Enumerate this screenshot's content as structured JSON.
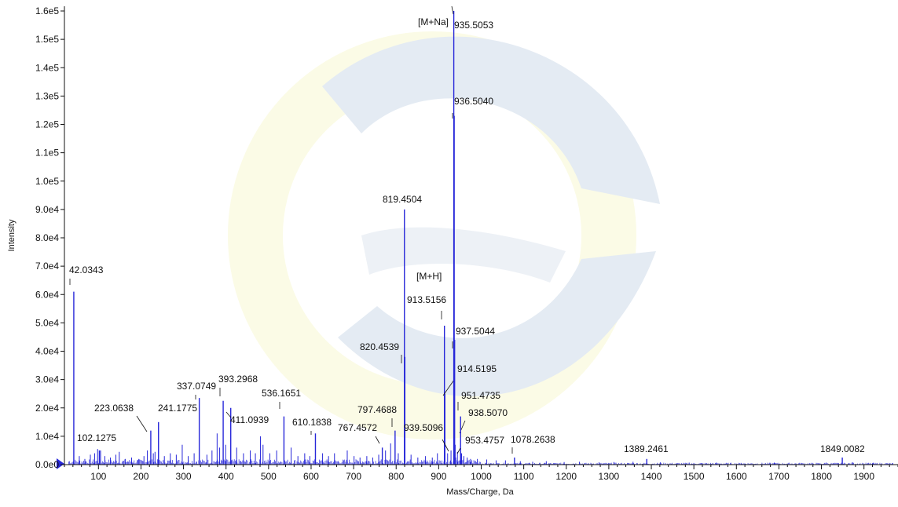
{
  "chart_data": {
    "type": "bar",
    "xlabel": "Mass/Charge, Da",
    "ylabel": "Intensity",
    "xlim": [
      20,
      1980
    ],
    "ylim": [
      0,
      160000
    ],
    "x_ticks": [
      100,
      200,
      300,
      400,
      500,
      600,
      700,
      800,
      900,
      1000,
      1100,
      1200,
      1300,
      1400,
      1500,
      1600,
      1700,
      1800,
      1900
    ],
    "y_ticks": [
      {
        "value": 0,
        "label": "0.0e0"
      },
      {
        "value": 10000,
        "label": "1.0e4"
      },
      {
        "value": 20000,
        "label": "2.0e4"
      },
      {
        "value": 30000,
        "label": "3.0e4"
      },
      {
        "value": 40000,
        "label": "4.0e4"
      },
      {
        "value": 50000,
        "label": "5.0e4"
      },
      {
        "value": 60000,
        "label": "6.0e4"
      },
      {
        "value": 70000,
        "label": "7.0e4"
      },
      {
        "value": 80000,
        "label": "8.0e4"
      },
      {
        "value": 90000,
        "label": "9.0e4"
      },
      {
        "value": 100000,
        "label": "1.0e5"
      },
      {
        "value": 110000,
        "label": "1.1e5"
      },
      {
        "value": 120000,
        "label": "1.2e5"
      },
      {
        "value": 130000,
        "label": "1.3e5"
      },
      {
        "value": 140000,
        "label": "1.4e5"
      },
      {
        "value": 150000,
        "label": "1.5e5"
      },
      {
        "value": 160000,
        "label": "1.6e5"
      }
    ],
    "peaks": [
      {
        "mz": 42.0343,
        "intensity": 61000,
        "label": "42.0343"
      },
      {
        "mz": 102.1275,
        "intensity": 5000,
        "label": "102.1275"
      },
      {
        "mz": 223.0638,
        "intensity": 12000,
        "label": "223.0638"
      },
      {
        "mz": 241.1775,
        "intensity": 15000,
        "label": "241.1775"
      },
      {
        "mz": 337.0749,
        "intensity": 23500,
        "label": "337.0749"
      },
      {
        "mz": 393.2968,
        "intensity": 22500,
        "label": "393.2968"
      },
      {
        "mz": 411.0939,
        "intensity": 20000,
        "label": "411.0939"
      },
      {
        "mz": 536.1651,
        "intensity": 17000,
        "label": "536.1651"
      },
      {
        "mz": 610.1838,
        "intensity": 11000,
        "label": "610.1838"
      },
      {
        "mz": 767.4572,
        "intensity": 6000,
        "label": "767.4572"
      },
      {
        "mz": 797.4688,
        "intensity": 12000,
        "label": "797.4688"
      },
      {
        "mz": 819.4504,
        "intensity": 90000,
        "label": "819.4504"
      },
      {
        "mz": 820.4539,
        "intensity": 38000,
        "label": "820.4539"
      },
      {
        "mz": 913.5156,
        "intensity": 49000,
        "label": "913.5156",
        "annotation": "[M+H]"
      },
      {
        "mz": 914.5195,
        "intensity": 25000,
        "label": "914.5195"
      },
      {
        "mz": 935.5053,
        "intensity": 160000,
        "label": "935.5053",
        "annotation": "[M+Na]"
      },
      {
        "mz": 936.504,
        "intensity": 123000,
        "label": "936.5040"
      },
      {
        "mz": 937.5044,
        "intensity": 44000,
        "label": "937.5044"
      },
      {
        "mz": 938.507,
        "intensity": 7000,
        "label": "938.5070"
      },
      {
        "mz": 939.5096,
        "intensity": 2500,
        "label": "939.5096"
      },
      {
        "mz": 951.4735,
        "intensity": 17000,
        "label": "951.4735"
      },
      {
        "mz": 953.4757,
        "intensity": 4000,
        "label": "953.4757"
      },
      {
        "mz": 1078.2638,
        "intensity": 2500,
        "label": "1078.2638"
      },
      {
        "mz": 1389.2461,
        "intensity": 2000,
        "label": "1389.2461"
      },
      {
        "mz": 1849.0082,
        "intensity": 2500,
        "label": "1849.0082"
      }
    ],
    "minor_peaks": [
      {
        "mz": 55,
        "intensity": 3000
      },
      {
        "mz": 68,
        "intensity": 2000
      },
      {
        "mz": 81,
        "intensity": 3500
      },
      {
        "mz": 91,
        "intensity": 4000
      },
      {
        "mz": 98,
        "intensity": 5500
      },
      {
        "mz": 105,
        "intensity": 5000
      },
      {
        "mz": 115,
        "intensity": 3000
      },
      {
        "mz": 128,
        "intensity": 2500
      },
      {
        "mz": 141,
        "intensity": 3500
      },
      {
        "mz": 149,
        "intensity": 4500
      },
      {
        "mz": 163,
        "intensity": 2000
      },
      {
        "mz": 178,
        "intensity": 2500
      },
      {
        "mz": 195,
        "intensity": 2000
      },
      {
        "mz": 207,
        "intensity": 3000
      },
      {
        "mz": 215,
        "intensity": 5000
      },
      {
        "mz": 229,
        "intensity": 4000
      },
      {
        "mz": 233,
        "intensity": 4500
      },
      {
        "mz": 255,
        "intensity": 3000
      },
      {
        "mz": 269,
        "intensity": 4000
      },
      {
        "mz": 283,
        "intensity": 3500
      },
      {
        "mz": 297,
        "intensity": 7000
      },
      {
        "mz": 311,
        "intensity": 3000
      },
      {
        "mz": 325,
        "intensity": 4000
      },
      {
        "mz": 355,
        "intensity": 3500
      },
      {
        "mz": 367,
        "intensity": 5000
      },
      {
        "mz": 379,
        "intensity": 11000
      },
      {
        "mz": 385,
        "intensity": 6000
      },
      {
        "mz": 399,
        "intensity": 7000
      },
      {
        "mz": 425,
        "intensity": 6000
      },
      {
        "mz": 441,
        "intensity": 4000
      },
      {
        "mz": 457,
        "intensity": 5000
      },
      {
        "mz": 469,
        "intensity": 4000
      },
      {
        "mz": 481,
        "intensity": 10000
      },
      {
        "mz": 487,
        "intensity": 7000
      },
      {
        "mz": 503,
        "intensity": 4000
      },
      {
        "mz": 519,
        "intensity": 5000
      },
      {
        "mz": 553,
        "intensity": 6000
      },
      {
        "mz": 569,
        "intensity": 3000
      },
      {
        "mz": 585,
        "intensity": 4000
      },
      {
        "mz": 597,
        "intensity": 3000
      },
      {
        "mz": 627,
        "intensity": 4000
      },
      {
        "mz": 641,
        "intensity": 3000
      },
      {
        "mz": 655,
        "intensity": 4000
      },
      {
        "mz": 685,
        "intensity": 5000
      },
      {
        "mz": 701,
        "intensity": 3000
      },
      {
        "mz": 715,
        "intensity": 2500
      },
      {
        "mz": 731,
        "intensity": 3000
      },
      {
        "mz": 745,
        "intensity": 2500
      },
      {
        "mz": 759,
        "intensity": 3500
      },
      {
        "mz": 775,
        "intensity": 5000
      },
      {
        "mz": 787,
        "intensity": 7500
      },
      {
        "mz": 805,
        "intensity": 4000
      },
      {
        "mz": 835,
        "intensity": 3500
      },
      {
        "mz": 851,
        "intensity": 2500
      },
      {
        "mz": 869,
        "intensity": 3000
      },
      {
        "mz": 885,
        "intensity": 2500
      },
      {
        "mz": 897,
        "intensity": 4000
      },
      {
        "mz": 921,
        "intensity": 4000
      },
      {
        "mz": 929,
        "intensity": 5000
      },
      {
        "mz": 944,
        "intensity": 4500
      },
      {
        "mz": 959,
        "intensity": 3000
      },
      {
        "mz": 967,
        "intensity": 2500
      },
      {
        "mz": 975,
        "intensity": 2000
      },
      {
        "mz": 991,
        "intensity": 2000
      },
      {
        "mz": 1013,
        "intensity": 1800
      },
      {
        "mz": 1035,
        "intensity": 1500
      },
      {
        "mz": 1057,
        "intensity": 1500
      },
      {
        "mz": 1092,
        "intensity": 1200
      },
      {
        "mz": 1121,
        "intensity": 1000
      },
      {
        "mz": 1153,
        "intensity": 1200
      },
      {
        "mz": 1195,
        "intensity": 900
      },
      {
        "mz": 1231,
        "intensity": 1000
      },
      {
        "mz": 1277,
        "intensity": 800
      },
      {
        "mz": 1312,
        "intensity": 900
      },
      {
        "mz": 1357,
        "intensity": 1000
      },
      {
        "mz": 1421,
        "intensity": 800
      },
      {
        "mz": 1489,
        "intensity": 700
      },
      {
        "mz": 1553,
        "intensity": 700
      },
      {
        "mz": 1611,
        "intensity": 600
      },
      {
        "mz": 1689,
        "intensity": 700
      },
      {
        "mz": 1752,
        "intensity": 600
      },
      {
        "mz": 1811,
        "intensity": 700
      },
      {
        "mz": 1873,
        "intensity": 800
      },
      {
        "mz": 1921,
        "intensity": 600
      }
    ],
    "colors": {
      "peak": "#2727d9",
      "axis": "#111111",
      "watermark_blue": "#e4ebf3",
      "watermark_yellow": "#fbfbe6"
    }
  }
}
